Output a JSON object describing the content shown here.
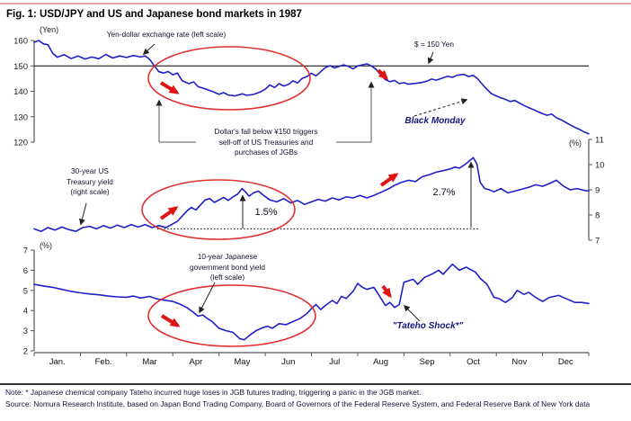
{
  "header": {
    "title": "Fig. 1: USD/JPY and US and Japanese bond markets in 1987"
  },
  "chart_data": {
    "type": "line",
    "title": "Fig. 1: USD/JPY and US and Japanese bond markets in 1987",
    "x_axis": {
      "months": [
        "Jan.",
        "Feb.",
        "Mar",
        "Apr",
        "May",
        "Jun",
        "Jul",
        "Aug",
        "Sep",
        "Oct",
        "Nov",
        "Dec"
      ]
    },
    "axes": {
      "yen": {
        "unit": "(Yen)",
        "ticks": [
          160,
          150,
          140,
          130,
          120
        ],
        "min": 120,
        "max": 160,
        "side": "left"
      },
      "pct_right": {
        "unit": "(%)",
        "ticks": [
          11,
          10,
          9,
          8,
          7
        ],
        "min": 7,
        "max": 11,
        "side": "right"
      },
      "pct_left": {
        "unit": "(%)",
        "ticks": [
          7,
          6,
          5,
          4,
          3,
          2
        ],
        "min": 2,
        "max": 7,
        "side": "left"
      }
    },
    "reference_lines": [
      {
        "axis": "yen",
        "value": 150,
        "style": "solid",
        "label": "$ = 150 Yen"
      },
      {
        "axis": "pct_right",
        "value": 7.45,
        "style": "dotted",
        "label": ""
      }
    ],
    "series": [
      {
        "name": "usd-jpy-exchange-rate",
        "label": "Yen-dollar exchange rate (left scale)",
        "axis": "yen",
        "points": [
          [
            0,
            159.3
          ],
          [
            0.1,
            160
          ],
          [
            0.2,
            158.7
          ],
          [
            0.3,
            158.3
          ],
          [
            0.4,
            155
          ],
          [
            0.5,
            153.4
          ],
          [
            0.65,
            154.4
          ],
          [
            0.8,
            152.9
          ],
          [
            0.95,
            153.9
          ],
          [
            1.1,
            152.7
          ],
          [
            1.25,
            153.5
          ],
          [
            1.4,
            152.8
          ],
          [
            1.55,
            154.5
          ],
          [
            1.7,
            153.1
          ],
          [
            1.85,
            153.9
          ],
          [
            2,
            153.3
          ],
          [
            2.15,
            154.1
          ],
          [
            2.3,
            153.5
          ],
          [
            2.4,
            153.9
          ],
          [
            2.5,
            152.6
          ],
          [
            2.6,
            150
          ],
          [
            2.7,
            147.7
          ],
          [
            2.8,
            147.2
          ],
          [
            2.9,
            147.8
          ],
          [
            3,
            146.5
          ],
          [
            3.1,
            147.2
          ],
          [
            3.2,
            144.2
          ],
          [
            3.35,
            143
          ],
          [
            3.45,
            143.7
          ],
          [
            3.55,
            141.8
          ],
          [
            3.7,
            141
          ],
          [
            3.85,
            140
          ],
          [
            4,
            138.8
          ],
          [
            4.1,
            139.5
          ],
          [
            4.2,
            138.5
          ],
          [
            4.35,
            138.2
          ],
          [
            4.5,
            139
          ],
          [
            4.6,
            138.4
          ],
          [
            4.75,
            138.8
          ],
          [
            4.9,
            139.8
          ],
          [
            5,
            140.8
          ],
          [
            5.1,
            142.5
          ],
          [
            5.2,
            141.5
          ],
          [
            5.3,
            143
          ],
          [
            5.4,
            142.1
          ],
          [
            5.5,
            142.7
          ],
          [
            5.6,
            144.1
          ],
          [
            5.7,
            143.3
          ],
          [
            5.8,
            145.1
          ],
          [
            5.9,
            145.8
          ],
          [
            6,
            147.1
          ],
          [
            6.1,
            146.1
          ],
          [
            6.2,
            147.7
          ],
          [
            6.3,
            149.3
          ],
          [
            6.4,
            150.1
          ],
          [
            6.5,
            149.2
          ],
          [
            6.6,
            149.8
          ],
          [
            6.7,
            150.4
          ],
          [
            6.8,
            149.8
          ],
          [
            6.9,
            148.8
          ],
          [
            7,
            150
          ],
          [
            7.1,
            150.4
          ],
          [
            7.2,
            150.8
          ],
          [
            7.3,
            150
          ],
          [
            7.4,
            148.6
          ],
          [
            7.5,
            146.4
          ],
          [
            7.6,
            144.6
          ],
          [
            7.7,
            143.8
          ],
          [
            7.8,
            144.3
          ],
          [
            7.9,
            143
          ],
          [
            8,
            143.4
          ],
          [
            8.1,
            142.8
          ],
          [
            8.25,
            143.1
          ],
          [
            8.4,
            143.5
          ],
          [
            8.5,
            144
          ],
          [
            8.6,
            144.8
          ],
          [
            8.7,
            144.4
          ],
          [
            8.85,
            145.3
          ],
          [
            8.95,
            145.9
          ],
          [
            9.05,
            145.5
          ],
          [
            9.15,
            146.3
          ],
          [
            9.3,
            146.7
          ],
          [
            9.4,
            145.8
          ],
          [
            9.5,
            146.3
          ],
          [
            9.6,
            144.8
          ],
          [
            9.7,
            142.7
          ],
          [
            9.8,
            140.7
          ],
          [
            9.9,
            139
          ],
          [
            10,
            138.2
          ],
          [
            10.1,
            137.4
          ],
          [
            10.2,
            136.8
          ],
          [
            10.3,
            136
          ],
          [
            10.4,
            136.4
          ],
          [
            10.5,
            135.4
          ],
          [
            10.6,
            134.4
          ],
          [
            10.7,
            133.6
          ],
          [
            10.8,
            132.8
          ],
          [
            10.9,
            132
          ],
          [
            11,
            131.2
          ],
          [
            11.1,
            130.6
          ],
          [
            11.2,
            131
          ],
          [
            11.3,
            129.6
          ],
          [
            11.4,
            128.8
          ],
          [
            11.5,
            127.8
          ],
          [
            11.6,
            126.8
          ],
          [
            11.7,
            125.8
          ],
          [
            11.8,
            125
          ],
          [
            11.9,
            124
          ],
          [
            12,
            123.3
          ]
        ]
      },
      {
        "name": "us-30y-treasury-yield",
        "label": "30-year US Treasury yield (right scale)",
        "axis": "pct_right",
        "points": [
          [
            0,
            7.45
          ],
          [
            0.15,
            7.35
          ],
          [
            0.3,
            7.5
          ],
          [
            0.45,
            7.4
          ],
          [
            0.6,
            7.52
          ],
          [
            0.75,
            7.42
          ],
          [
            0.9,
            7.35
          ],
          [
            1.05,
            7.5
          ],
          [
            1.2,
            7.55
          ],
          [
            1.35,
            7.45
          ],
          [
            1.5,
            7.58
          ],
          [
            1.65,
            7.48
          ],
          [
            1.8,
            7.6
          ],
          [
            1.95,
            7.5
          ],
          [
            2.1,
            7.62
          ],
          [
            2.25,
            7.52
          ],
          [
            2.4,
            7.62
          ],
          [
            2.55,
            7.5
          ],
          [
            2.7,
            7.58
          ],
          [
            2.85,
            7.5
          ],
          [
            3,
            7.65
          ],
          [
            3.1,
            7.75
          ],
          [
            3.2,
            7.95
          ],
          [
            3.3,
            8.15
          ],
          [
            3.4,
            8.3
          ],
          [
            3.5,
            8.2
          ],
          [
            3.6,
            8.4
          ],
          [
            3.7,
            8.6
          ],
          [
            3.8,
            8.65
          ],
          [
            3.9,
            8.5
          ],
          [
            4,
            8.6
          ],
          [
            4.1,
            8.7
          ],
          [
            4.2,
            8.58
          ],
          [
            4.3,
            8.72
          ],
          [
            4.4,
            8.82
          ],
          [
            4.5,
            9.05
          ],
          [
            4.58,
            8.9
          ],
          [
            4.65,
            8.75
          ],
          [
            4.75,
            8.88
          ],
          [
            4.85,
            8.95
          ],
          [
            4.95,
            8.8
          ],
          [
            5.1,
            8.6
          ],
          [
            5.25,
            8.52
          ],
          [
            5.4,
            8.65
          ],
          [
            5.55,
            8.48
          ],
          [
            5.7,
            8.58
          ],
          [
            5.85,
            8.42
          ],
          [
            6,
            8.52
          ],
          [
            6.15,
            8.62
          ],
          [
            6.3,
            8.55
          ],
          [
            6.45,
            8.68
          ],
          [
            6.6,
            8.6
          ],
          [
            6.75,
            8.72
          ],
          [
            6.9,
            8.68
          ],
          [
            7.05,
            8.78
          ],
          [
            7.2,
            8.68
          ],
          [
            7.35,
            8.78
          ],
          [
            7.5,
            8.9
          ],
          [
            7.65,
            9.02
          ],
          [
            7.8,
            9.18
          ],
          [
            7.95,
            9.3
          ],
          [
            8.1,
            9.38
          ],
          [
            8.25,
            9.33
          ],
          [
            8.4,
            9.52
          ],
          [
            8.55,
            9.6
          ],
          [
            8.7,
            9.7
          ],
          [
            8.85,
            9.76
          ],
          [
            9,
            9.83
          ],
          [
            9.1,
            9.9
          ],
          [
            9.2,
            9.86
          ],
          [
            9.3,
            9.98
          ],
          [
            9.4,
            10.12
          ],
          [
            9.5,
            10.28
          ],
          [
            9.58,
            10.02
          ],
          [
            9.65,
            9.3
          ],
          [
            9.75,
            9.05
          ],
          [
            9.85,
            9
          ],
          [
            9.95,
            8.92
          ],
          [
            10.1,
            9.05
          ],
          [
            10.25,
            8.88
          ],
          [
            10.4,
            8.95
          ],
          [
            10.55,
            9.02
          ],
          [
            10.7,
            9.1
          ],
          [
            10.85,
            9.2
          ],
          [
            11,
            9.14
          ],
          [
            11.15,
            9.25
          ],
          [
            11.3,
            9.38
          ],
          [
            11.45,
            9.15
          ],
          [
            11.6,
            9
          ],
          [
            11.75,
            9.05
          ],
          [
            11.9,
            8.98
          ],
          [
            12,
            8.95
          ]
        ]
      },
      {
        "name": "jgb-10y-yield",
        "label": "10-year Japanese government bond yield (left scale)",
        "axis": "pct_left",
        "points": [
          [
            0,
            5.3
          ],
          [
            0.2,
            5.22
          ],
          [
            0.4,
            5.15
          ],
          [
            0.6,
            5.05
          ],
          [
            0.8,
            4.95
          ],
          [
            1,
            4.88
          ],
          [
            1.2,
            4.82
          ],
          [
            1.4,
            4.78
          ],
          [
            1.6,
            4.72
          ],
          [
            1.8,
            4.68
          ],
          [
            2,
            4.66
          ],
          [
            2.15,
            4.72
          ],
          [
            2.3,
            4.62
          ],
          [
            2.5,
            4.7
          ],
          [
            2.65,
            4.58
          ],
          [
            2.8,
            4.52
          ],
          [
            3,
            4.45
          ],
          [
            3.15,
            4.32
          ],
          [
            3.3,
            4.15
          ],
          [
            3.45,
            3.9
          ],
          [
            3.55,
            3.72
          ],
          [
            3.65,
            3.78
          ],
          [
            3.75,
            3.6
          ],
          [
            3.85,
            3.45
          ],
          [
            4,
            3.12
          ],
          [
            4.15,
            3
          ],
          [
            4.3,
            2.92
          ],
          [
            4.45,
            2.6
          ],
          [
            4.55,
            2.55
          ],
          [
            4.65,
            2.75
          ],
          [
            4.8,
            3
          ],
          [
            4.95,
            3.15
          ],
          [
            5.05,
            3.22
          ],
          [
            5.15,
            3.12
          ],
          [
            5.3,
            3.35
          ],
          [
            5.45,
            3.3
          ],
          [
            5.6,
            3.45
          ],
          [
            5.75,
            3.6
          ],
          [
            5.9,
            3.85
          ],
          [
            6,
            4.1
          ],
          [
            6.1,
            4.3
          ],
          [
            6.2,
            4.05
          ],
          [
            6.3,
            4.25
          ],
          [
            6.45,
            4.5
          ],
          [
            6.55,
            4.35
          ],
          [
            6.65,
            4.7
          ],
          [
            6.75,
            4.6
          ],
          [
            6.9,
            4.95
          ],
          [
            7,
            5.35
          ],
          [
            7.1,
            5.15
          ],
          [
            7.2,
            5.05
          ],
          [
            7.35,
            5.15
          ],
          [
            7.45,
            4.8
          ],
          [
            7.6,
            4.25
          ],
          [
            7.7,
            4.4
          ],
          [
            7.8,
            4.15
          ],
          [
            7.9,
            4.3
          ],
          [
            8,
            5.4
          ],
          [
            8.2,
            5.55
          ],
          [
            8.3,
            5.3
          ],
          [
            8.45,
            5.65
          ],
          [
            8.6,
            5.8
          ],
          [
            8.75,
            6
          ],
          [
            8.85,
            5.8
          ],
          [
            9.05,
            6.3
          ],
          [
            9.2,
            6
          ],
          [
            9.35,
            6.15
          ],
          [
            9.55,
            5.9
          ],
          [
            9.65,
            5.6
          ],
          [
            9.8,
            5.3
          ],
          [
            9.95,
            4.65
          ],
          [
            10.05,
            4.6
          ],
          [
            10.2,
            4.4
          ],
          [
            10.35,
            4.65
          ],
          [
            10.45,
            5
          ],
          [
            10.6,
            4.8
          ],
          [
            10.7,
            4.9
          ],
          [
            10.85,
            4.65
          ],
          [
            11,
            4.45
          ],
          [
            11.15,
            4.65
          ],
          [
            11.35,
            4.75
          ],
          [
            11.5,
            4.6
          ],
          [
            11.7,
            4.4
          ],
          [
            11.85,
            4.4
          ],
          [
            12,
            4.35
          ]
        ]
      }
    ]
  },
  "annotations": {
    "yen_dollar_label": "Yen-dollar exchange rate (left scale)",
    "usd_150": "$ = 150 Yen",
    "dollars_fall_lines": [
      "Dollar's fall below ¥150 triggers",
      "sell-off of US Treasuries and",
      "purchases of JGBs"
    ],
    "black_monday": "Black Monday",
    "ust_label_lines": [
      "30-year US",
      "Treasury yield",
      "(right scale)"
    ],
    "rise_may": "1.5%",
    "rise_oct": "2.7%",
    "jgb_label_lines": [
      "10-year Japanese",
      "government bond yield",
      "(left scale)"
    ],
    "tateho": "\"Tateho Shock*\""
  },
  "footer": {
    "note": "Note: * Japanese chemical company Tateho incurred huge loses in JGB futures trading, triggering a panic in the JGB market.",
    "source": "Source: Nomura Research Institute, based on Japan Bond Trading Company, Board of Governors of the Federal Reserve System, and Federal Reserve Bank of New York data"
  },
  "colors": {
    "series_line": "#2020c8",
    "annotation_red": "#e01414",
    "ellipse_red": "#e03030",
    "navy_text": "#15157d",
    "top_rule": "#dfa6a6",
    "reference_line": "#000000"
  }
}
